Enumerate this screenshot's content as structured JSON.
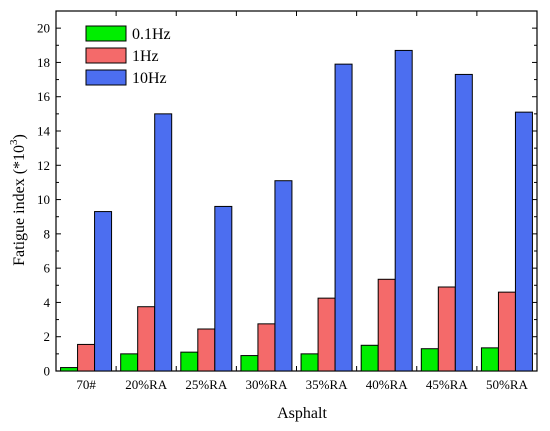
{
  "chart_data": {
    "type": "bar",
    "categories": [
      "70#",
      "20%RA",
      "25%RA",
      "30%RA",
      "35%RA",
      "40%RA",
      "45%RA",
      "50%RA"
    ],
    "series": [
      {
        "name": "0.1Hz",
        "color": "#00ee00",
        "values": [
          0.2,
          1.0,
          1.1,
          0.9,
          1.0,
          1.5,
          1.3,
          1.35
        ]
      },
      {
        "name": "1Hz",
        "color": "#f46a6a",
        "values": [
          1.55,
          3.75,
          2.45,
          2.75,
          4.25,
          5.35,
          4.9,
          4.6
        ]
      },
      {
        "name": "10Hz",
        "color": "#4c6ef0",
        "values": [
          9.3,
          15.0,
          9.6,
          11.1,
          17.9,
          18.7,
          17.3,
          15.1
        ]
      }
    ],
    "xlabel": "Asphalt",
    "ylabel_main": "Fatigue index (*10",
    "ylabel_sup": "3",
    "ylabel_close": ")",
    "ylim": [
      0,
      21
    ],
    "yticks": [
      0,
      2,
      4,
      6,
      8,
      10,
      12,
      14,
      16,
      18,
      20
    ],
    "grid": false,
    "legend": "top-left"
  }
}
